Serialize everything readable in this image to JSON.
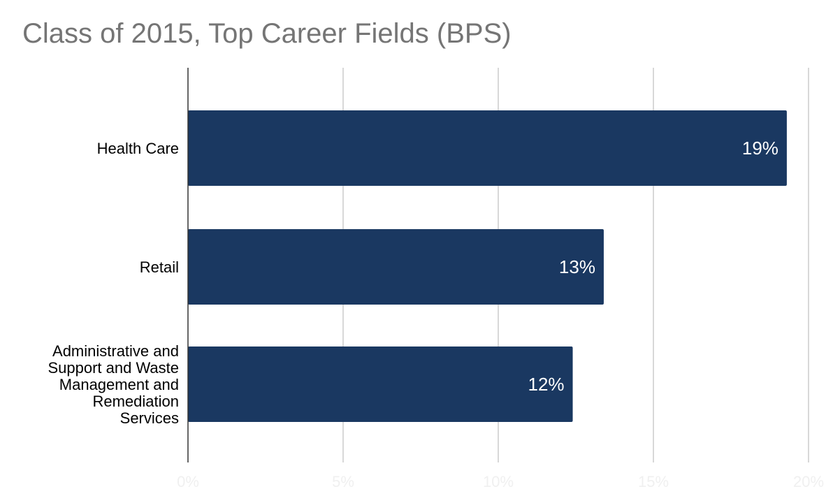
{
  "chart_data": {
    "type": "bar",
    "orientation": "horizontal",
    "title": "Class of 2015, Top Career Fields (BPS)",
    "categories": [
      "Health Care",
      "Retail",
      "Administrative and Support and Waste Management and Remediation Services"
    ],
    "category_label_lines": [
      [
        "Health Care"
      ],
      [
        "Retail"
      ],
      [
        "Administrative and",
        "Support and Waste",
        "Management and",
        "Remediation",
        "Services"
      ]
    ],
    "values": [
      19.3,
      13.4,
      12.4
    ],
    "data_labels": [
      "19%",
      "13%",
      "12%"
    ],
    "xlim": [
      0,
      20
    ],
    "x_ticks": [
      0,
      5,
      10,
      15,
      20
    ],
    "x_tick_labels": [
      "0%",
      "5%",
      "10%",
      "15%",
      "20%"
    ],
    "xlabel": "",
    "ylabel": "",
    "grid": true,
    "legend": "none",
    "colors": {
      "bar": "#1a3861",
      "title": "#757575",
      "gridline": "#cccccc",
      "axis": "#333333",
      "data_label": "#ffffff",
      "tick_label": "#f0f0f0"
    }
  }
}
